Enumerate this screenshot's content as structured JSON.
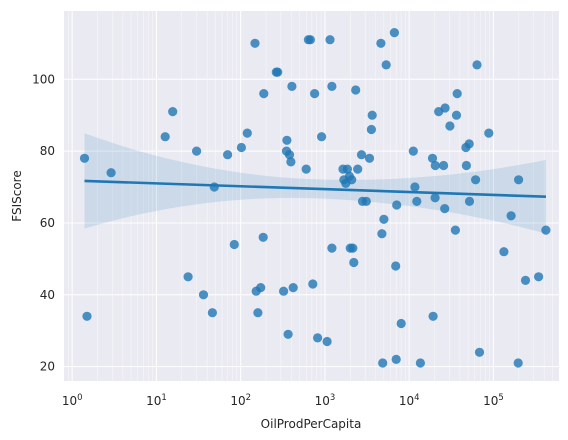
{
  "chart_data": {
    "type": "scatter",
    "xlabel": "OilProdPerCapita",
    "ylabel": "FSIScore",
    "x_scale": "log",
    "xlim": [
      0.8,
      600000
    ],
    "ylim": [
      16,
      119
    ],
    "x_ticks": [
      1,
      10,
      100,
      1000,
      10000,
      100000
    ],
    "x_tick_labels": [
      {
        "base": "10",
        "exp": "0"
      },
      {
        "base": "10",
        "exp": "1"
      },
      {
        "base": "10",
        "exp": "2"
      },
      {
        "base": "10",
        "exp": "3"
      },
      {
        "base": "10",
        "exp": "4"
      },
      {
        "base": "10",
        "exp": "5"
      }
    ],
    "y_ticks": [
      20,
      40,
      60,
      80,
      100
    ],
    "y_tick_labels": [
      "20",
      "40",
      "60",
      "80",
      "100"
    ],
    "grid": true,
    "colors": {
      "background": "#eaeaf2",
      "points": "#1f77b4",
      "line": "#1f77b4",
      "band": "#1f77b4"
    },
    "regression": {
      "x_range": [
        1.4,
        420000
      ],
      "y_start": 71.7,
      "y_end": 67.3,
      "ci_lower_start": 58,
      "ci_upper_start": 84.5,
      "ci_lower_mid": 67.5,
      "ci_upper_mid": 72.8,
      "ci_lower_end": 57,
      "ci_upper_end": 77.5
    },
    "points": [
      [
        1.4,
        78
      ],
      [
        1.5,
        34
      ],
      [
        2.9,
        74
      ],
      [
        12.7,
        84
      ],
      [
        15.6,
        91
      ],
      [
        23.8,
        45
      ],
      [
        30,
        80
      ],
      [
        36.2,
        40
      ],
      [
        46.2,
        35
      ],
      [
        48.6,
        70
      ],
      [
        70,
        79
      ],
      [
        84,
        54
      ],
      [
        102,
        81
      ],
      [
        120,
        85
      ],
      [
        148,
        110
      ],
      [
        153,
        41
      ],
      [
        160,
        35
      ],
      [
        173,
        42
      ],
      [
        185,
        56
      ],
      [
        188,
        96
      ],
      [
        265,
        102
      ],
      [
        275,
        102
      ],
      [
        323,
        41
      ],
      [
        350,
        80
      ],
      [
        354,
        83
      ],
      [
        366,
        29
      ],
      [
        380,
        79
      ],
      [
        395,
        77
      ],
      [
        405,
        98
      ],
      [
        420,
        42
      ],
      [
        600,
        75
      ],
      [
        637,
        111
      ],
      [
        672,
        111
      ],
      [
        718,
        43
      ],
      [
        754,
        96
      ],
      [
        818,
        28
      ],
      [
        914,
        84
      ],
      [
        1060,
        27
      ],
      [
        1150,
        111
      ],
      [
        1210,
        98
      ],
      [
        1210,
        53
      ],
      [
        1640,
        75
      ],
      [
        1680,
        72
      ],
      [
        1770,
        71
      ],
      [
        1850,
        75
      ],
      [
        1950,
        73
      ],
      [
        2000,
        53
      ],
      [
        2080,
        72
      ],
      [
        2140,
        53
      ],
      [
        2200,
        49
      ],
      [
        2320,
        97
      ],
      [
        2450,
        75
      ],
      [
        2720,
        79
      ],
      [
        2790,
        66
      ],
      [
        3100,
        66
      ],
      [
        3380,
        78
      ],
      [
        3560,
        86
      ],
      [
        3640,
        90
      ],
      [
        4620,
        110
      ],
      [
        4750,
        57
      ],
      [
        4850,
        21
      ],
      [
        5010,
        61
      ],
      [
        5340,
        104
      ],
      [
        6680,
        113
      ],
      [
        6920,
        48
      ],
      [
        7010,
        22
      ],
      [
        7110,
        65
      ],
      [
        8040,
        32
      ],
      [
        11200,
        80
      ],
      [
        11700,
        70
      ],
      [
        12300,
        66
      ],
      [
        13600,
        21
      ],
      [
        18900,
        78
      ],
      [
        19200,
        34
      ],
      [
        20300,
        67
      ],
      [
        20400,
        76
      ],
      [
        22400,
        91
      ],
      [
        25600,
        76
      ],
      [
        26400,
        64
      ],
      [
        26700,
        92
      ],
      [
        30400,
        87
      ],
      [
        35400,
        58
      ],
      [
        36400,
        90
      ],
      [
        37100,
        96
      ],
      [
        47100,
        81
      ],
      [
        47700,
        76
      ],
      [
        51500,
        82
      ],
      [
        52000,
        66
      ],
      [
        61400,
        72
      ],
      [
        63900,
        104
      ],
      [
        68300,
        24
      ],
      [
        88000,
        85
      ],
      [
        133000,
        52
      ],
      [
        162000,
        62
      ],
      [
        197000,
        21
      ],
      [
        199000,
        72
      ],
      [
        240000,
        44
      ],
      [
        344000,
        45
      ],
      [
        420000,
        58
      ]
    ]
  }
}
